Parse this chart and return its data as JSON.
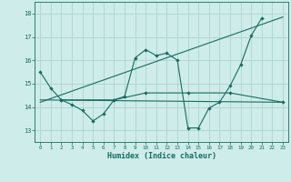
{
  "xlabel": "Humidex (Indice chaleur)",
  "bg_color": "#cdecea",
  "grid_color": "#aed4d0",
  "line_color": "#1a6b60",
  "xlim": [
    -0.5,
    23.5
  ],
  "ylim": [
    12.5,
    18.5
  ],
  "yticks": [
    13,
    14,
    15,
    16,
    17,
    18
  ],
  "xticks": [
    0,
    1,
    2,
    3,
    4,
    5,
    6,
    7,
    8,
    9,
    10,
    11,
    12,
    13,
    14,
    15,
    16,
    17,
    18,
    19,
    20,
    21,
    22,
    23
  ],
  "series": [
    {
      "x": [
        0,
        1,
        2,
        3,
        4,
        5,
        6,
        7,
        8,
        9,
        10,
        11,
        12,
        13,
        14,
        15,
        16,
        17,
        18,
        19,
        20,
        21,
        22,
        23
      ],
      "y": [
        15.5,
        14.8,
        14.3,
        14.1,
        13.85,
        13.4,
        13.7,
        14.3,
        14.45,
        16.1,
        16.45,
        16.2,
        16.3,
        16.0,
        13.1,
        13.1,
        13.95,
        14.2,
        14.9,
        15.8,
        17.05,
        17.8,
        null,
        null
      ],
      "markers": true
    },
    {
      "x": [
        2,
        7,
        10,
        14,
        18,
        23
      ],
      "y": [
        14.3,
        14.3,
        14.6,
        14.6,
        14.6,
        14.2
      ],
      "markers": true
    },
    {
      "x": [
        0,
        23
      ],
      "y": [
        14.3,
        14.2
      ],
      "markers": false
    },
    {
      "x": [
        0,
        23
      ],
      "y": [
        14.2,
        17.85
      ],
      "markers": false
    }
  ]
}
